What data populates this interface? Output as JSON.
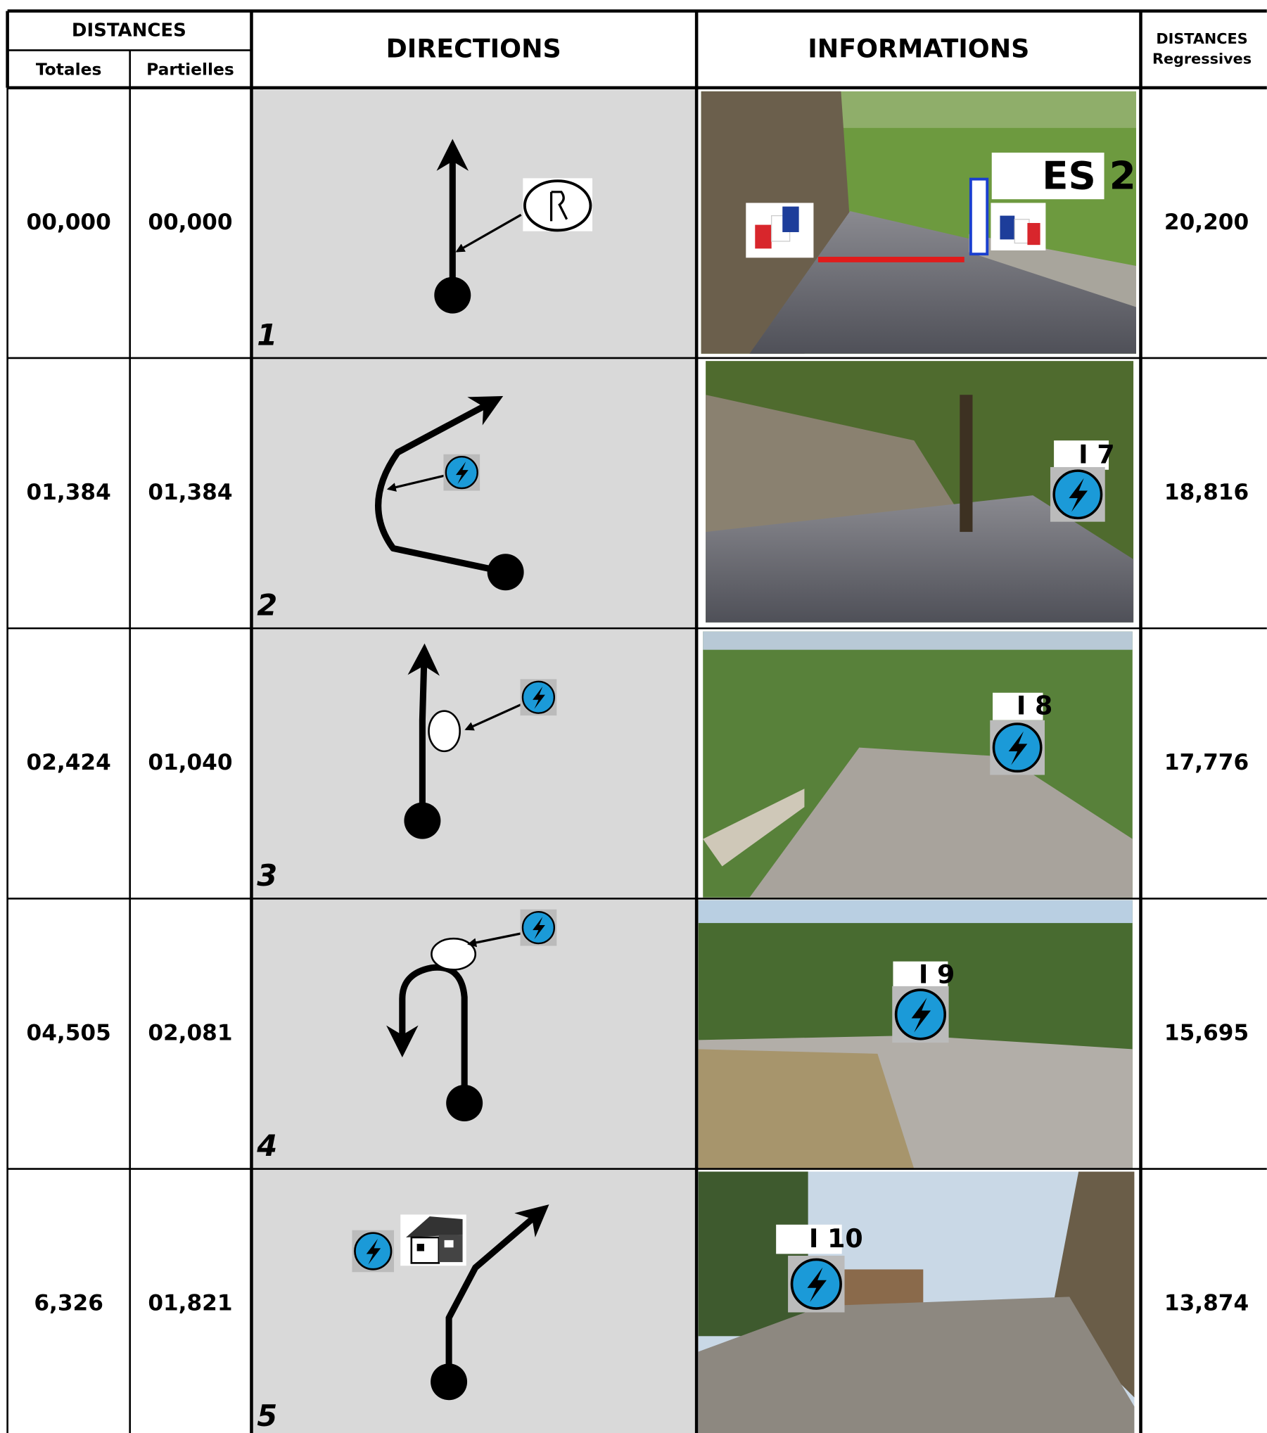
{
  "header": {
    "distances": "DISTANCES",
    "totales": "Totales",
    "partielles": "Partielles",
    "directions": "DIRECTIONS",
    "informations": "INFORMATIONS",
    "regressives_title": "DISTANCES",
    "regressives_sub": "Regressives"
  },
  "rows": [
    {
      "totale": "00,000",
      "partielle": "00,000",
      "step": "1",
      "label": "ES 2",
      "regressive": "20,200"
    },
    {
      "totale": "01,384",
      "partielle": "01,384",
      "step": "2",
      "label": "I 7",
      "regressive": "18,816"
    },
    {
      "totale": "02,424",
      "partielle": "01,040",
      "step": "3",
      "label": "I 8",
      "regressive": "17,776"
    },
    {
      "totale": "04,505",
      "partielle": "02,081",
      "step": "4",
      "label": "I 9",
      "regressive": "15,695"
    },
    {
      "totale": "6,326",
      "partielle": "01,821",
      "step": "5",
      "label": "I 10",
      "regressive": "13,874"
    }
  ]
}
